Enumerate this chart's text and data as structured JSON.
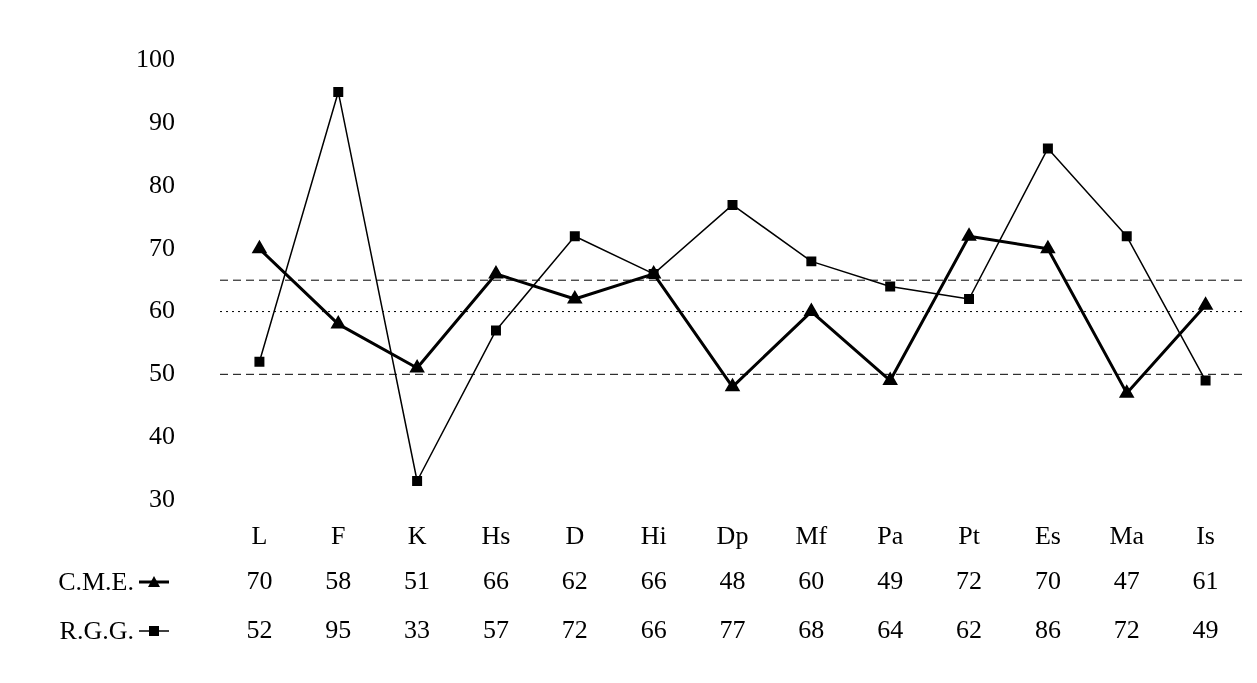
{
  "chart_data": {
    "type": "line",
    "categories": [
      "L",
      "F",
      "K",
      "Hs",
      "D",
      "Hi",
      "Dp",
      "Mf",
      "Pa",
      "Pt",
      "Es",
      "Ma",
      "Is"
    ],
    "series": [
      {
        "name": "C.M.E.",
        "color": "#000000",
        "marker": "triangle",
        "values": [
          70,
          58,
          51,
          66,
          62,
          66,
          48,
          60,
          49,
          72,
          70,
          47,
          61
        ]
      },
      {
        "name": "R.G.G.",
        "color": "#000000",
        "marker": "square",
        "values": [
          52,
          95,
          33,
          57,
          72,
          66,
          77,
          68,
          64,
          62,
          86,
          72,
          49
        ]
      }
    ],
    "ylim": [
      30,
      100
    ],
    "yticks": [
      30,
      40,
      50,
      60,
      70,
      80,
      90,
      100
    ],
    "grid": false,
    "legend": "bottom left",
    "data_labels": true,
    "line_style": "solid",
    "ref_lines": [
      {
        "axis": "y",
        "value": 50,
        "line_style": "dashed",
        "color": "#000000"
      },
      {
        "axis": "y",
        "value": 60,
        "line_style": "dotted",
        "color": "#000000"
      },
      {
        "axis": "y",
        "value": 65,
        "line_style": "dashed",
        "color": "#000000"
      }
    ]
  }
}
